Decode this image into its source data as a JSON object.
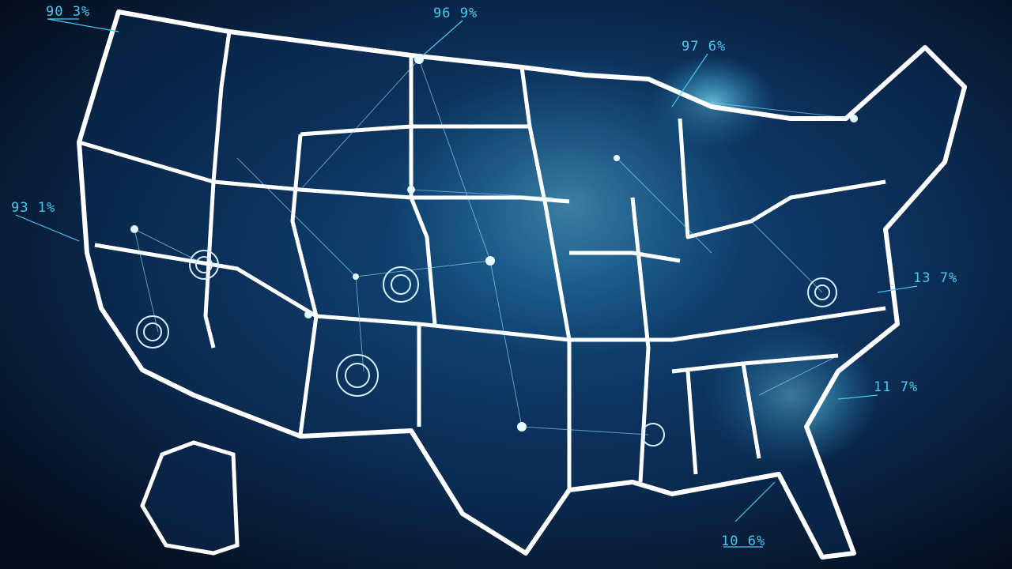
{
  "labels": [
    {
      "text": "90 3%"
    },
    {
      "text": "96 9%"
    },
    {
      "text": "97 6%"
    },
    {
      "text": "93 1%"
    },
    {
      "text": "13 7%"
    },
    {
      "text": "11 7%"
    },
    {
      "text": "10 6%"
    }
  ]
}
